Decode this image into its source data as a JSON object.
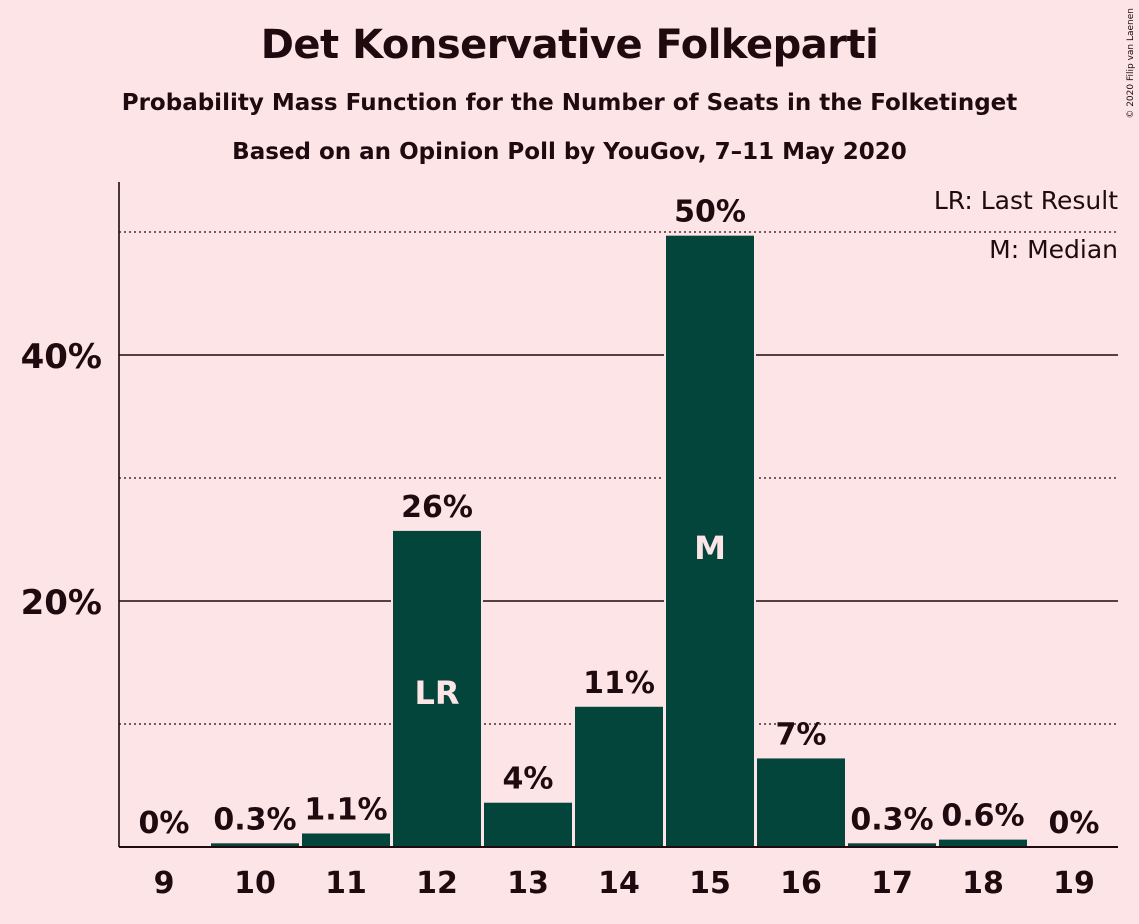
{
  "header": {
    "title": "Det Konservative Folkeparti",
    "subtitle": "Probability Mass Function for the Number of Seats in the Folketinget",
    "subtitle2": "Based on an Opinion Poll by YouGov, 7–11 May 2020",
    "copyright": "© 2020 Filip van Laenen"
  },
  "legend": {
    "last_result": "LR: Last Result",
    "median": "M: Median"
  },
  "colors": {
    "background": "#fde4e7",
    "bar": "#04453b",
    "text": "#1e0a0f",
    "bar_label": "#fde4e7"
  },
  "chart_data": {
    "type": "bar",
    "title": "Det Konservative Folkeparti",
    "subtitle": "Probability Mass Function for the Number of Seats in the Folketinget",
    "xlabel": "",
    "ylabel": "",
    "categories": [
      "9",
      "10",
      "11",
      "12",
      "13",
      "14",
      "15",
      "16",
      "17",
      "18",
      "19"
    ],
    "values": [
      0,
      0.3,
      1.1,
      25.7,
      3.6,
      11.4,
      49.7,
      7.2,
      0.3,
      0.6,
      0
    ],
    "value_labels": [
      "0%",
      "0.3%",
      "1.1%",
      "26%",
      "4%",
      "11%",
      "50%",
      "7%",
      "0.3%",
      "0.6%",
      "0%"
    ],
    "bar_markers": {
      "12": "LR",
      "15": "M"
    },
    "ylim": [
      0,
      54
    ],
    "yticks": [
      20,
      40
    ],
    "ytick_labels": [
      "20%",
      "40%"
    ],
    "minor_gridlines": [
      10,
      30,
      50
    ],
    "grid": true,
    "legend_position": "top-right"
  }
}
